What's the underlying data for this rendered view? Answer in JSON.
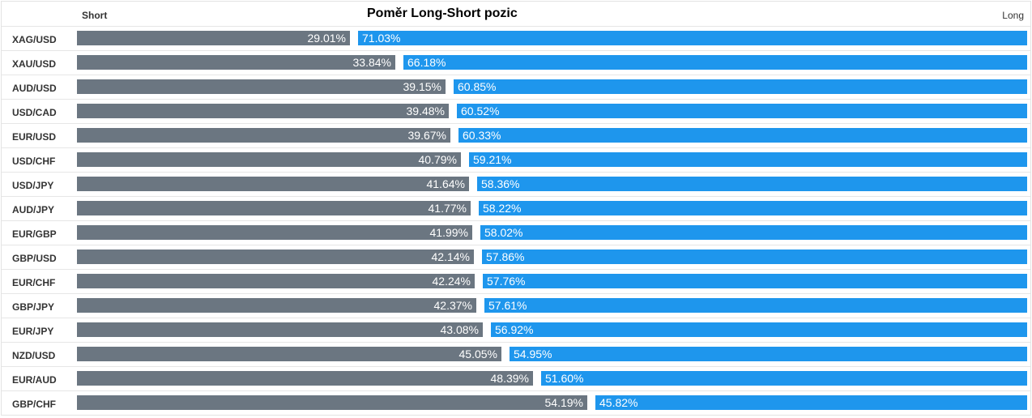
{
  "header": {
    "title": "Poměr Long-Short pozic",
    "short_label": "Short",
    "long_label": "Long"
  },
  "colors": {
    "short": "#6b7681",
    "long": "#1e96ed"
  },
  "chart_data": {
    "type": "bar",
    "orientation": "horizontal-stacked-100",
    "title": "Poměr Long-Short pozic",
    "categories": [
      "XAG/USD",
      "XAU/USD",
      "AUD/USD",
      "USD/CAD",
      "EUR/USD",
      "USD/CHF",
      "USD/JPY",
      "AUD/JPY",
      "EUR/GBP",
      "GBP/USD",
      "EUR/CHF",
      "GBP/JPY",
      "EUR/JPY",
      "NZD/USD",
      "EUR/AUD",
      "GBP/CHF"
    ],
    "series": [
      {
        "name": "Short",
        "values": [
          29.01,
          33.84,
          39.15,
          39.48,
          39.67,
          40.79,
          41.64,
          41.77,
          41.99,
          42.14,
          42.24,
          42.37,
          43.08,
          45.05,
          48.39,
          54.19
        ]
      },
      {
        "name": "Long",
        "values": [
          71.03,
          66.18,
          60.85,
          60.52,
          60.33,
          59.21,
          58.36,
          58.22,
          58.02,
          57.86,
          57.76,
          57.61,
          56.92,
          54.95,
          51.6,
          45.82
        ]
      }
    ],
    "value_labels": {
      "short": [
        "29.01%",
        "33.84%",
        "39.15%",
        "39.48%",
        "39.67%",
        "40.79%",
        "41.64%",
        "41.77%",
        "41.99%",
        "42.14%",
        "42.24%",
        "42.37%",
        "43.08%",
        "45.05%",
        "48.39%",
        "54.19%"
      ],
      "long": [
        "71.03%",
        "66.18%",
        "60.85%",
        "60.52%",
        "60.33%",
        "59.21%",
        "58.36%",
        "58.22%",
        "58.02%",
        "57.86%",
        "57.76%",
        "57.61%",
        "56.92%",
        "54.95%",
        "51.60%",
        "45.82%"
      ]
    },
    "xlim": [
      0,
      100
    ],
    "grid": false
  }
}
